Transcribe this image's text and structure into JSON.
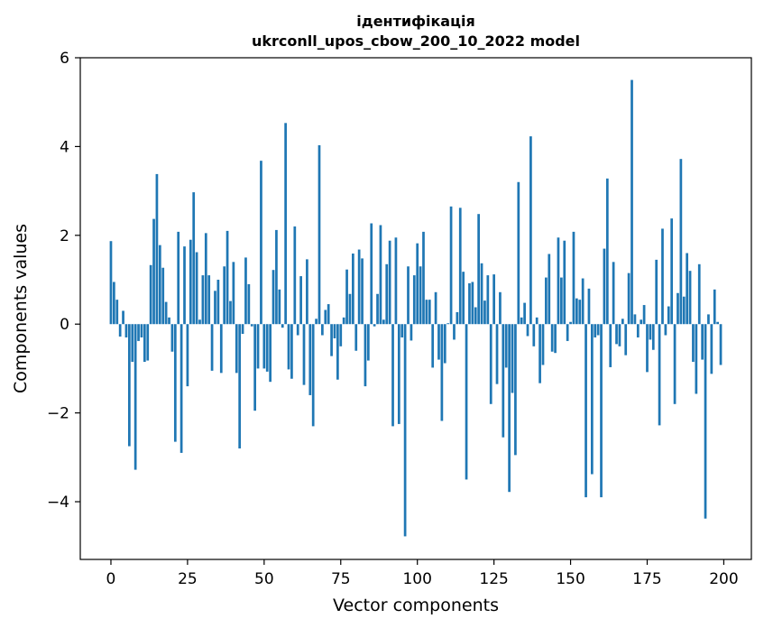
{
  "chart_data": {
    "type": "bar",
    "title": "ідентифікація\nukrconll_upos_cbow_200_10_2022 model",
    "xlabel": "Vector components",
    "ylabel": "Components values",
    "xlim": [
      -10,
      209
    ],
    "ylim": [
      -5.3,
      6
    ],
    "xticks": [
      0,
      25,
      50,
      75,
      100,
      125,
      150,
      175,
      200
    ],
    "yticks": [
      -4,
      -2,
      0,
      2,
      4,
      6
    ],
    "bar_color": "#1f77b4",
    "grid": false,
    "x": [
      0,
      1,
      2,
      3,
      4,
      5,
      6,
      7,
      8,
      9,
      10,
      11,
      12,
      13,
      14,
      15,
      16,
      17,
      18,
      19,
      20,
      21,
      22,
      23,
      24,
      25,
      26,
      27,
      28,
      29,
      30,
      31,
      32,
      33,
      34,
      35,
      36,
      37,
      38,
      39,
      40,
      41,
      42,
      43,
      44,
      45,
      46,
      47,
      48,
      49,
      50,
      51,
      52,
      53,
      54,
      55,
      56,
      57,
      58,
      59,
      60,
      61,
      62,
      63,
      64,
      65,
      66,
      67,
      68,
      69,
      70,
      71,
      72,
      73,
      74,
      75,
      76,
      77,
      78,
      79,
      80,
      81,
      82,
      83,
      84,
      85,
      86,
      87,
      88,
      89,
      90,
      91,
      92,
      93,
      94,
      95,
      96,
      97,
      98,
      99,
      100,
      101,
      102,
      103,
      104,
      105,
      106,
      107,
      108,
      109,
      110,
      111,
      112,
      113,
      114,
      115,
      116,
      117,
      118,
      119,
      120,
      121,
      122,
      123,
      124,
      125,
      126,
      127,
      128,
      129,
      130,
      131,
      132,
      133,
      134,
      135,
      136,
      137,
      138,
      139,
      140,
      141,
      142,
      143,
      144,
      145,
      146,
      147,
      148,
      149,
      150,
      151,
      152,
      153,
      154,
      155,
      156,
      157,
      158,
      159,
      160,
      161,
      162,
      163,
      164,
      165,
      166,
      167,
      168,
      169,
      170,
      171,
      172,
      173,
      174,
      175,
      176,
      177,
      178,
      179,
      180,
      181,
      182,
      183,
      184,
      185,
      186,
      187,
      188,
      189,
      190,
      191,
      192,
      193,
      194,
      195,
      196,
      197,
      198,
      199
    ],
    "values": [
      1.87,
      0.95,
      0.55,
      -0.28,
      0.3,
      -0.3,
      -2.75,
      -0.85,
      -3.28,
      -0.38,
      -0.3,
      -0.85,
      -0.82,
      1.33,
      2.37,
      3.38,
      1.78,
      1.27,
      0.5,
      0.15,
      -0.62,
      -2.65,
      2.08,
      -2.9,
      1.75,
      -1.4,
      1.9,
      2.97,
      1.62,
      0.1,
      1.1,
      2.05,
      1.1,
      -1.05,
      0.75,
      1.0,
      -1.1,
      1.3,
      2.1,
      0.52,
      1.4,
      -1.1,
      -2.8,
      -0.22,
      1.5,
      0.9,
      -0.05,
      -1.95,
      -1.0,
      3.68,
      -1.0,
      -1.07,
      -1.3,
      1.22,
      2.12,
      0.78,
      -0.08,
      4.53,
      -1.02,
      -1.23,
      2.2,
      -0.25,
      1.08,
      -1.37,
      1.46,
      -1.6,
      -2.3,
      0.12,
      4.03,
      -0.25,
      0.32,
      0.45,
      -0.72,
      -0.32,
      -1.25,
      -0.5,
      0.15,
      1.23,
      0.68,
      1.59,
      -0.6,
      1.68,
      1.48,
      -1.4,
      -0.82,
      2.27,
      -0.05,
      0.68,
      2.23,
      0.1,
      1.35,
      1.88,
      -2.3,
      1.95,
      -2.25,
      -0.3,
      -4.78,
      1.3,
      -0.37,
      1.1,
      1.82,
      1.3,
      2.08,
      0.55,
      0.55,
      -0.98,
      0.72,
      -0.8,
      -2.18,
      -0.88,
      0.02,
      2.65,
      -0.35,
      0.27,
      2.62,
      1.18,
      -3.5,
      0.92,
      0.95,
      0.38,
      2.48,
      1.37,
      0.53,
      1.1,
      -1.8,
      1.12,
      -1.35,
      0.72,
      -2.55,
      -0.98,
      -3.78,
      -1.55,
      -2.95,
      3.2,
      0.15,
      0.48,
      -0.27,
      4.23,
      -0.5,
      0.15,
      -1.33,
      -0.92,
      1.05,
      1.58,
      -0.62,
      -0.65,
      1.95,
      1.05,
      1.88,
      -0.38,
      0.05,
      2.08,
      0.58,
      0.55,
      1.03,
      -3.9,
      0.8,
      -3.38,
      -0.3,
      -0.25,
      -3.9,
      1.7,
      3.28,
      -0.97,
      1.4,
      -0.45,
      -0.5,
      0.12,
      -0.7,
      1.15,
      5.5,
      0.22,
      -0.3,
      0.1,
      0.43,
      -1.08,
      -0.35,
      -0.58,
      1.45,
      -2.28,
      2.15,
      -0.25,
      0.4,
      2.38,
      -1.8,
      0.7,
      3.72,
      0.62,
      1.6,
      1.2,
      -0.85,
      -1.57,
      1.35,
      -0.8,
      -4.38,
      0.22,
      -1.12,
      0.78,
      0.05,
      -0.92
    ]
  }
}
